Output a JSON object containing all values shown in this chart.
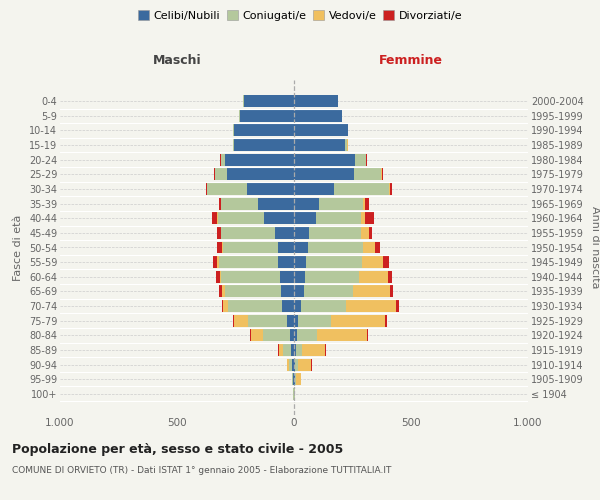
{
  "age_groups": [
    "100+",
    "95-99",
    "90-94",
    "85-89",
    "80-84",
    "75-79",
    "70-74",
    "65-69",
    "60-64",
    "55-59",
    "50-54",
    "45-49",
    "40-44",
    "35-39",
    "30-34",
    "25-29",
    "20-24",
    "15-19",
    "10-14",
    "5-9",
    "0-4"
  ],
  "birth_years": [
    "≤ 1904",
    "1905-1909",
    "1910-1914",
    "1915-1919",
    "1920-1924",
    "1925-1929",
    "1930-1934",
    "1935-1939",
    "1940-1944",
    "1945-1949",
    "1950-1954",
    "1955-1959",
    "1960-1964",
    "1965-1969",
    "1970-1974",
    "1975-1979",
    "1980-1984",
    "1985-1989",
    "1990-1994",
    "1995-1999",
    "2000-2004"
  ],
  "maschi": {
    "celibi": [
      2,
      4,
      8,
      12,
      18,
      28,
      50,
      55,
      60,
      70,
      70,
      80,
      130,
      155,
      200,
      285,
      295,
      255,
      258,
      232,
      215
    ],
    "coniugati": [
      2,
      4,
      12,
      35,
      115,
      170,
      230,
      240,
      250,
      250,
      235,
      230,
      195,
      155,
      170,
      52,
      18,
      4,
      2,
      1,
      1
    ],
    "vedovi": [
      1,
      2,
      8,
      18,
      52,
      58,
      22,
      12,
      8,
      7,
      4,
      3,
      2,
      2,
      1,
      2,
      1,
      0,
      0,
      0,
      0
    ],
    "divorziati": [
      0,
      0,
      0,
      2,
      4,
      4,
      7,
      14,
      14,
      18,
      18,
      16,
      22,
      8,
      4,
      3,
      2,
      2,
      0,
      0,
      0
    ]
  },
  "femmine": {
    "nubili": [
      2,
      4,
      4,
      8,
      12,
      18,
      28,
      42,
      46,
      52,
      58,
      62,
      96,
      106,
      170,
      255,
      260,
      220,
      230,
      206,
      186
    ],
    "coniugate": [
      1,
      4,
      12,
      28,
      85,
      138,
      195,
      210,
      230,
      240,
      235,
      225,
      190,
      190,
      235,
      116,
      46,
      8,
      2,
      1,
      1
    ],
    "vedove": [
      2,
      22,
      58,
      95,
      215,
      235,
      215,
      160,
      125,
      90,
      55,
      32,
      18,
      8,
      4,
      4,
      2,
      1,
      0,
      0,
      0
    ],
    "divorziate": [
      0,
      0,
      1,
      4,
      6,
      8,
      10,
      12,
      16,
      22,
      18,
      15,
      38,
      18,
      8,
      4,
      2,
      1,
      0,
      0,
      0
    ]
  },
  "colors": {
    "celibi": "#3b6a9e",
    "coniugati": "#b4c89c",
    "vedovi": "#f0c060",
    "divorziati": "#cc2020"
  },
  "title": "Popolazione per età, sesso e stato civile - 2005",
  "subtitle": "COMUNE DI ORVIETO (TR) - Dati ISTAT 1° gennaio 2005 - Elaborazione TUTTITALIA.IT",
  "label_maschi": "Maschi",
  "label_femmine": "Femmine",
  "ylabel_left": "Fasce di età",
  "ylabel_right": "Anni di nascita",
  "xlim": 1000,
  "legend_labels": [
    "Celibi/Nubili",
    "Coniugati/e",
    "Vedovi/e",
    "Divorziati/e"
  ],
  "bg_color": "#f4f4ee"
}
